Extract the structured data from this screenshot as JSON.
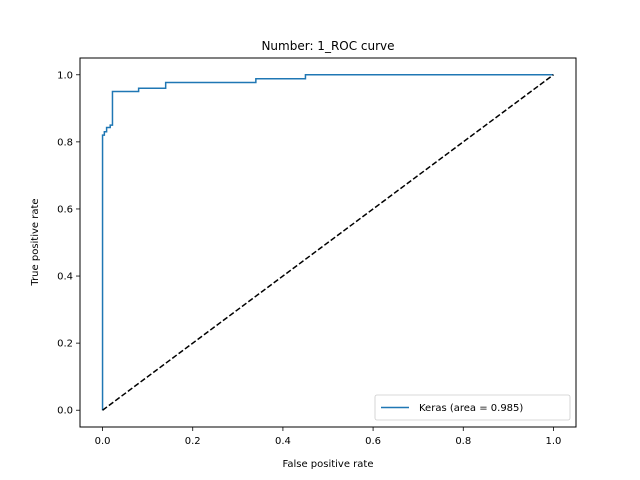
{
  "chart_data": {
    "type": "line",
    "title": "Number:  1_ROC curve",
    "xlabel": "False positive rate",
    "ylabel": "True positive rate",
    "xlim": [
      -0.05,
      1.05
    ],
    "ylim": [
      -0.05,
      1.05
    ],
    "xticks": [
      0.0,
      0.2,
      0.4,
      0.6,
      0.8,
      1.0
    ],
    "xtick_labels": [
      "0.0",
      "0.2",
      "0.4",
      "0.6",
      "0.8",
      "1.0"
    ],
    "yticks": [
      0.0,
      0.2,
      0.4,
      0.6,
      0.8,
      1.0
    ],
    "ytick_labels": [
      "0.0",
      "0.2",
      "0.4",
      "0.6",
      "0.8",
      "1.0"
    ],
    "grid": false,
    "legend_position": "lower-right",
    "series": [
      {
        "name": "Keras (area = 0.985)",
        "color": "#1f77b4",
        "style": "solid",
        "x": [
          0.0,
          0.0,
          0.004,
          0.004,
          0.009,
          0.009,
          0.017,
          0.017,
          0.022,
          0.022,
          0.08,
          0.08,
          0.14,
          0.14,
          0.34,
          0.34,
          0.45,
          0.45,
          1.0
        ],
        "y": [
          0.0,
          0.82,
          0.82,
          0.83,
          0.83,
          0.843,
          0.843,
          0.85,
          0.85,
          0.95,
          0.95,
          0.96,
          0.96,
          0.977,
          0.977,
          0.988,
          0.988,
          1.0,
          1.0
        ]
      },
      {
        "color": "#000000",
        "style": "dashed",
        "x": [
          0.0,
          1.0
        ],
        "y": [
          0.0,
          1.0
        ]
      }
    ]
  }
}
